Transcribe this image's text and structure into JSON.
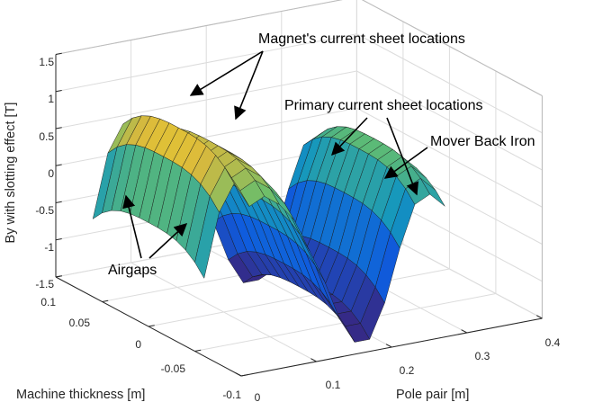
{
  "chart_data": {
    "type": "surface",
    "xlabel": "Pole pair [m]",
    "ylabel": "Machine thickness [m]",
    "zlabel": "By with slotting effect [T]",
    "xlim": [
      0,
      0.4
    ],
    "ylim": [
      -0.1,
      0.1
    ],
    "zlim": [
      -1.5,
      1.5
    ],
    "x_ticks": [
      "0",
      "0.1",
      "0.2",
      "0.3",
      "0.4"
    ],
    "y_ticks": [
      "-0.1",
      "-0.05",
      "0",
      "0.05",
      "0.1"
    ],
    "z_ticks": [
      "-1.5",
      "-1",
      "-0.5",
      "0",
      "0.5",
      "1",
      "1.5"
    ],
    "grid": true,
    "colormap": "parula",
    "x": [
      0.0,
      0.02,
      0.04,
      0.06,
      0.08,
      0.1,
      0.12,
      0.14,
      0.16,
      0.18,
      0.2,
      0.22,
      0.24,
      0.26,
      0.28,
      0.3,
      0.32
    ],
    "center_profile_By": [
      -0.1,
      0.75,
      1.1,
      0.75,
      0.85,
      0.7,
      0.45,
      0.0,
      -0.45,
      -1.0,
      -1.35,
      -1.35,
      -0.9,
      -0.2,
      0.35,
      0.45,
      0.25
    ],
    "edge_drop_By": 0.35,
    "annotations": [
      "Magnet's current sheet locations",
      "Primary current sheet locations",
      "Mover Back Iron",
      "Airgaps"
    ]
  }
}
